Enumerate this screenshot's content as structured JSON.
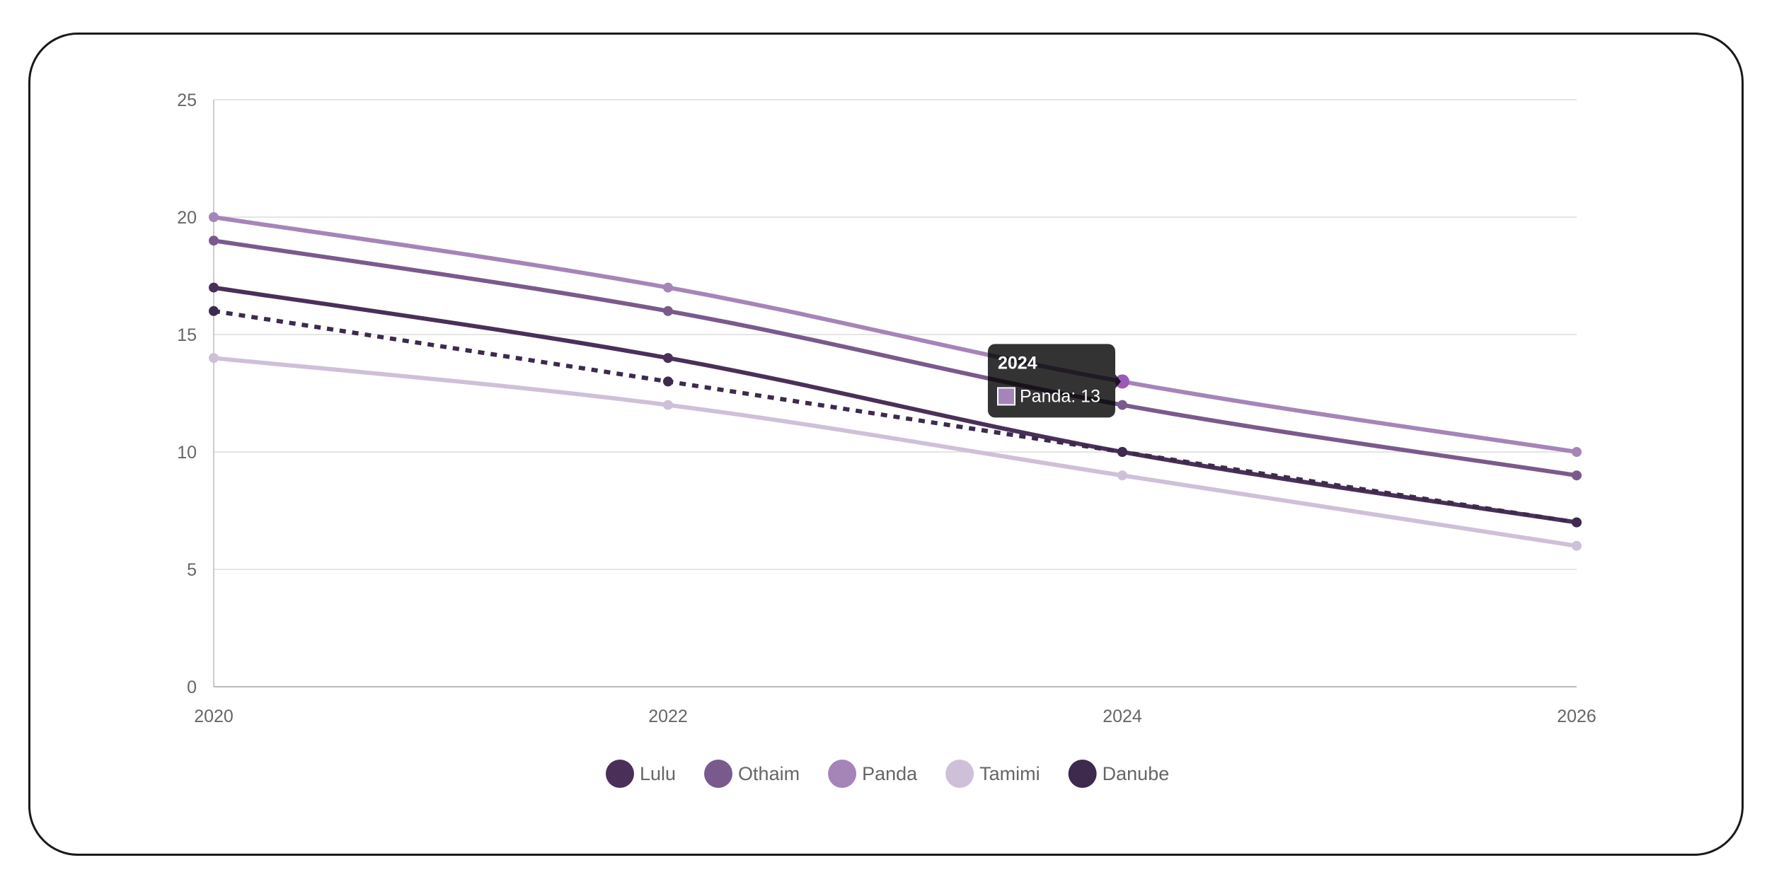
{
  "chart_data": {
    "type": "line",
    "x": [
      2020,
      2022,
      2024,
      2026
    ],
    "x_ticks": [
      "2020",
      "2022",
      "2024",
      "2026"
    ],
    "y_ticks": [
      "0",
      "5",
      "10",
      "15",
      "20",
      "25"
    ],
    "ylim": [
      0,
      25
    ],
    "xlim": [
      2020,
      2026
    ],
    "grid": true,
    "legend_position": "bottom",
    "series": [
      {
        "name": "Lulu",
        "values": [
          17,
          14,
          10,
          7
        ],
        "color": "#4a3059",
        "dashed": false
      },
      {
        "name": "Othaim",
        "values": [
          19,
          16,
          12,
          9
        ],
        "color": "#7a5a8c",
        "dashed": false
      },
      {
        "name": "Panda",
        "values": [
          20,
          17,
          13,
          10
        ],
        "color": "#a585b8",
        "dashed": false
      },
      {
        "name": "Tamimi",
        "values": [
          14,
          12,
          9,
          6
        ],
        "color": "#cfc0d9",
        "dashed": false
      },
      {
        "name": "Danube",
        "values": [
          16,
          13,
          10,
          7
        ],
        "color": "#3d2a4d",
        "dashed": true
      }
    ],
    "tooltip": {
      "title": "2024",
      "label": "Panda: 13",
      "series_index": 2,
      "point_index": 2
    }
  }
}
